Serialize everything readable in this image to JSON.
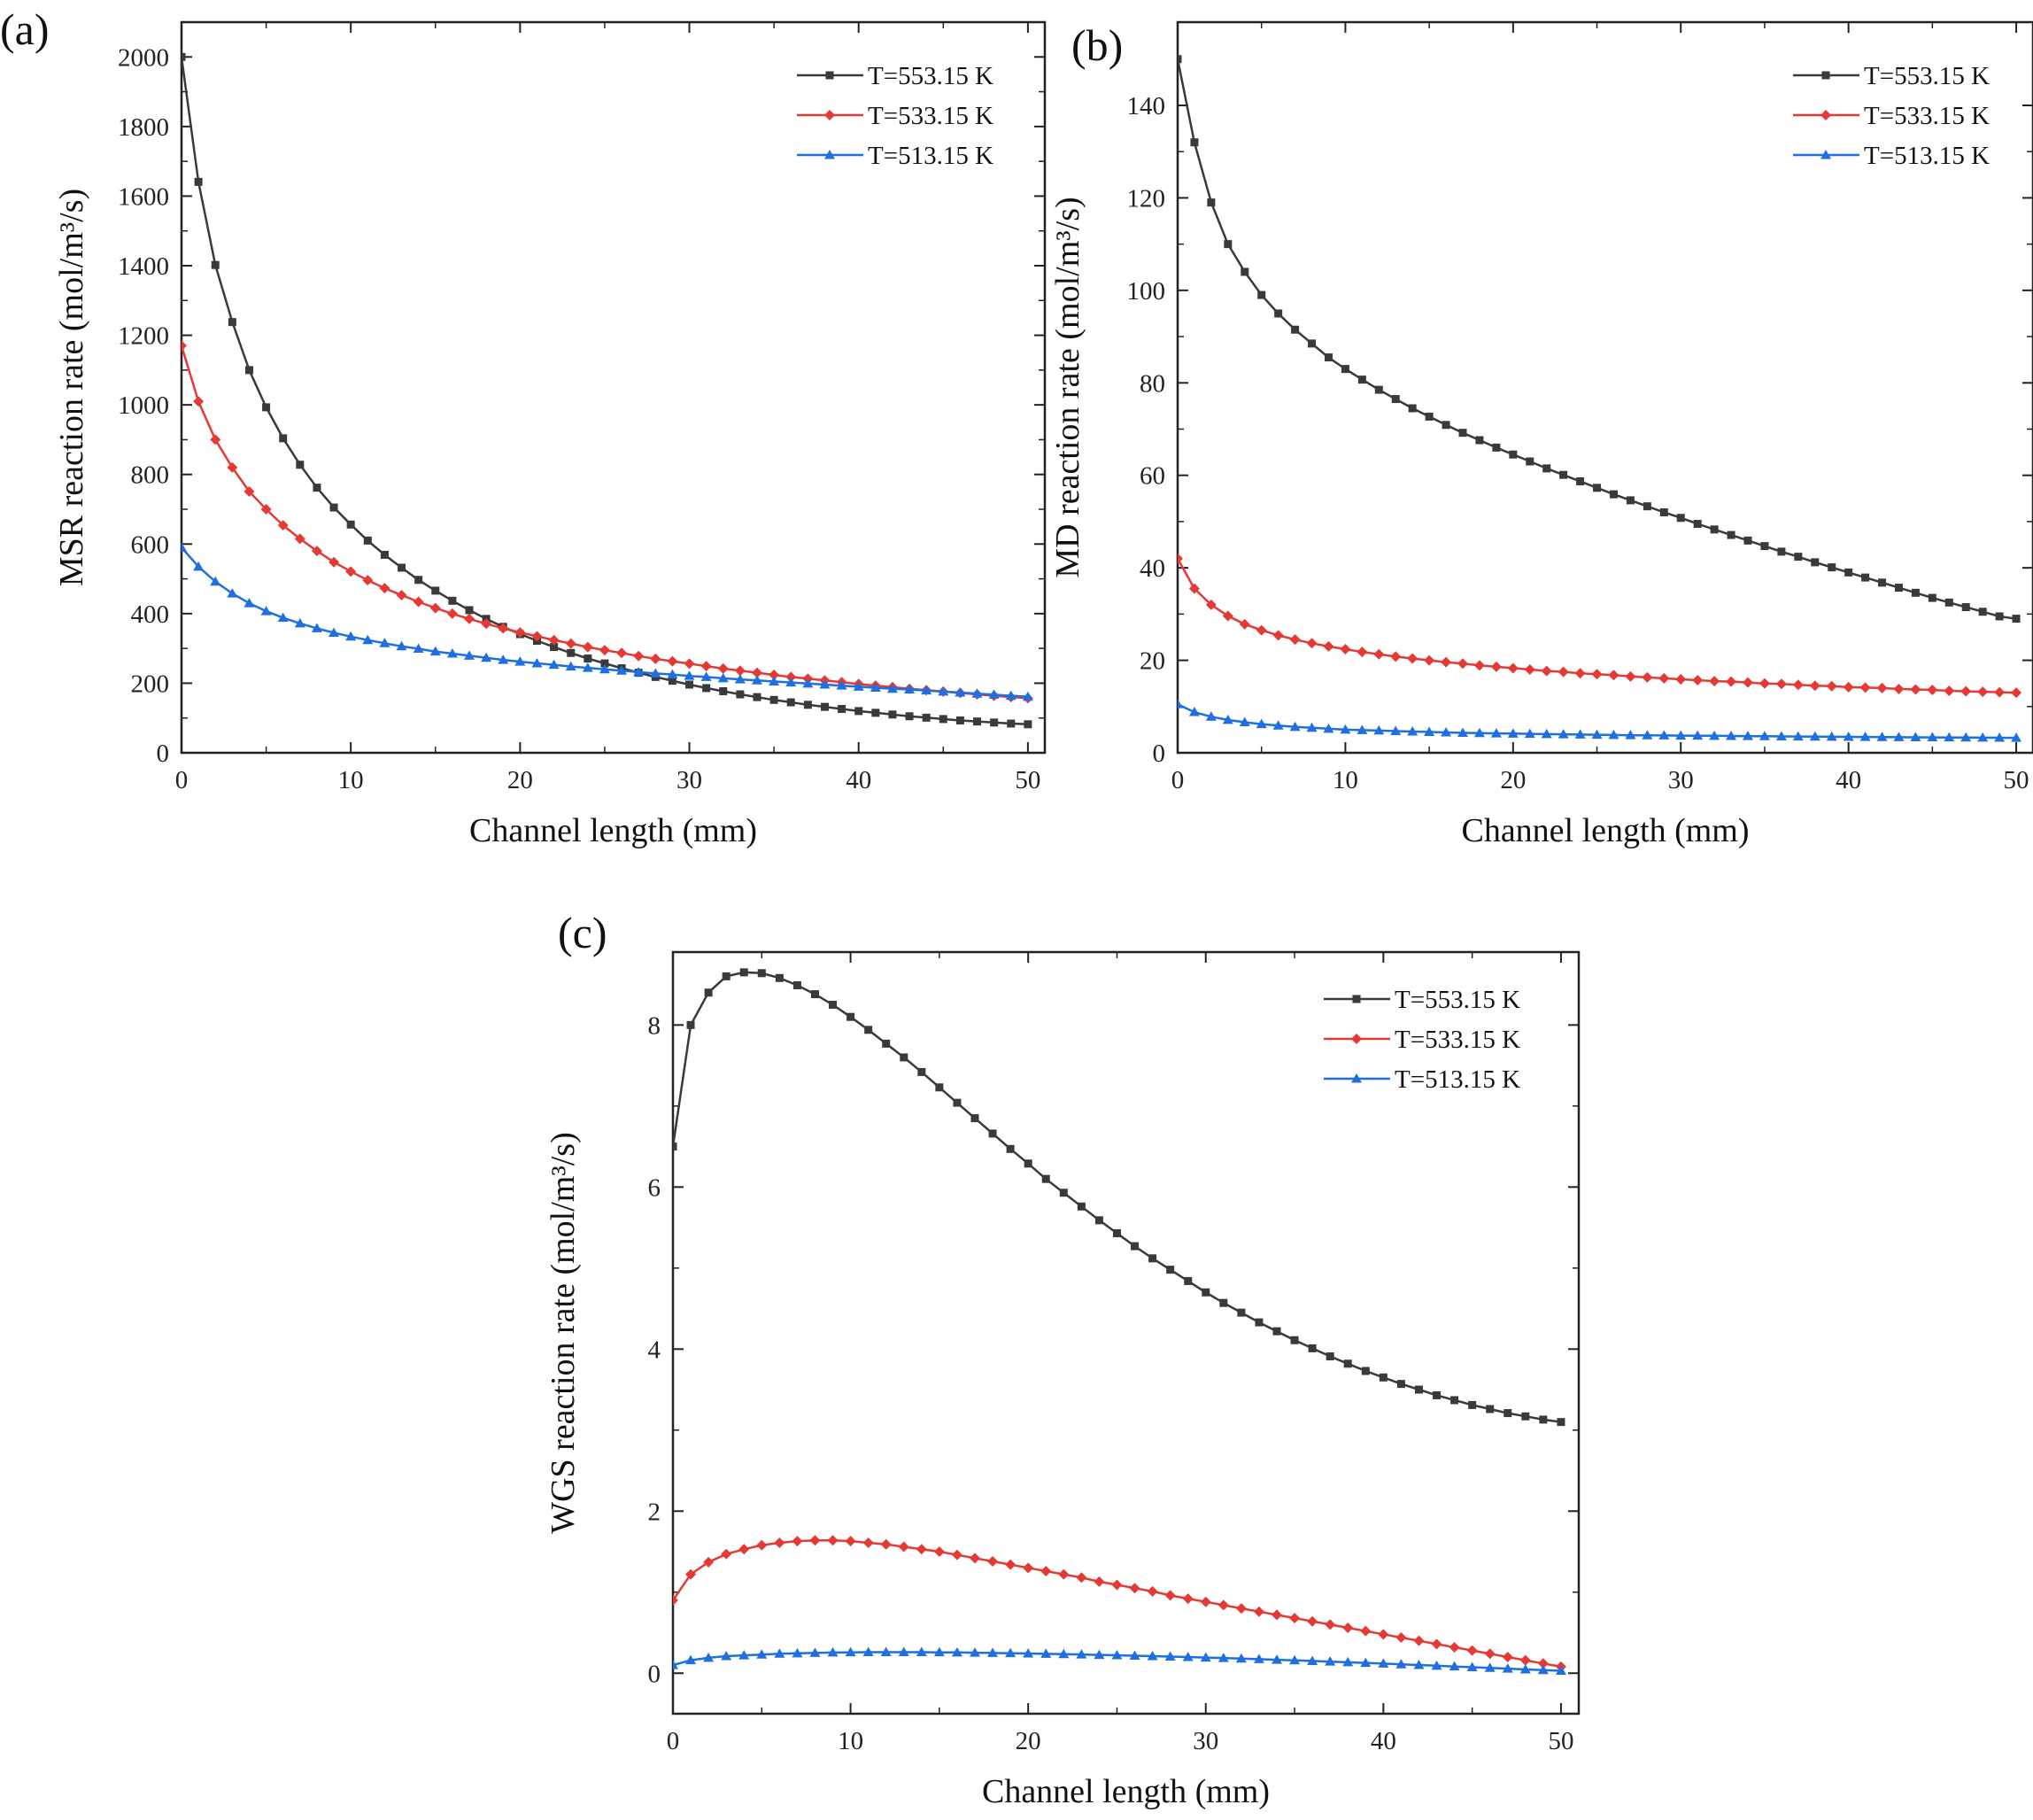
{
  "chart_data": [
    {
      "panel": "(a)",
      "type": "line",
      "xlabel": "Channel length (mm)",
      "ylabel": "MSR reaction rate (mol/m³/s)",
      "xlim": [
        0,
        51
      ],
      "ylim": [
        0,
        2100
      ],
      "xticks": [
        0,
        10,
        20,
        30,
        40,
        50
      ],
      "yticks": [
        0,
        200,
        400,
        600,
        800,
        1000,
        1200,
        1400,
        1600,
        1800,
        2000
      ],
      "grid": false,
      "legend_position": "top-right",
      "x": [
        0,
        1,
        2,
        3,
        4,
        5,
        6,
        7,
        8,
        9,
        10,
        11,
        12,
        13,
        14,
        15,
        16,
        17,
        18,
        19,
        20,
        21,
        22,
        23,
        24,
        25,
        26,
        27,
        28,
        29,
        30,
        31,
        32,
        33,
        34,
        35,
        36,
        37,
        38,
        39,
        40,
        41,
        42,
        43,
        44,
        45,
        46,
        47,
        48,
        49,
        50
      ],
      "series": [
        {
          "name": "T=553.15 K",
          "color": "#3a3a3a",
          "marker": "square",
          "values": [
            2000,
            1641,
            1402,
            1238,
            1100,
            993,
            904,
            828,
            762,
            705,
            656,
            610,
            569,
            532,
            497,
            466,
            437,
            410,
            385,
            362,
            341,
            322,
            304,
            287,
            271,
            257,
            243,
            230,
            218,
            207,
            196,
            186,
            177,
            168,
            160,
            152,
            145,
            138,
            132,
            126,
            120,
            115,
            110,
            105,
            101,
            97,
            93,
            90,
            87,
            84,
            82
          ]
        },
        {
          "name": "T=533.15 K",
          "color": "#e53935",
          "marker": "diamond",
          "values": [
            1170,
            1010,
            900,
            820,
            751,
            700,
            654,
            615,
            580,
            548,
            521,
            496,
            473,
            453,
            434,
            416,
            400,
            385,
            371,
            358,
            346,
            335,
            324,
            314,
            304,
            295,
            287,
            278,
            270,
            263,
            256,
            249,
            242,
            236,
            230,
            224,
            218,
            213,
            208,
            203,
            198,
            193,
            189,
            184,
            180,
            176,
            172,
            168,
            164,
            160,
            157
          ]
        },
        {
          "name": "T=513.15 K",
          "color": "#1e6fe0",
          "marker": "triangle",
          "values": [
            590,
            535,
            492,
            458,
            430,
            407,
            388,
            372,
            358,
            345,
            334,
            324,
            315,
            306,
            299,
            291,
            285,
            279,
            273,
            267,
            262,
            257,
            253,
            248,
            244,
            240,
            236,
            232,
            228,
            225,
            221,
            218,
            214,
            211,
            208,
            205,
            202,
            199,
            196,
            193,
            190,
            187,
            184,
            182,
            179,
            176,
            173,
            170,
            167,
            164,
            161
          ]
        }
      ]
    },
    {
      "panel": "(b)",
      "type": "line",
      "xlabel": "Channel length (mm)",
      "ylabel": "MD reaction rate (mol/m³/s)",
      "xlim": [
        0,
        51
      ],
      "ylim": [
        0,
        158
      ],
      "xticks": [
        0,
        10,
        20,
        30,
        40,
        50
      ],
      "yticks": [
        0,
        20,
        40,
        60,
        80,
        100,
        120,
        140
      ],
      "grid": false,
      "legend_position": "top-right",
      "x": [
        0,
        1,
        2,
        3,
        4,
        5,
        6,
        7,
        8,
        9,
        10,
        11,
        12,
        13,
        14,
        15,
        16,
        17,
        18,
        19,
        20,
        21,
        22,
        23,
        24,
        25,
        26,
        27,
        28,
        29,
        30,
        31,
        32,
        33,
        34,
        35,
        36,
        37,
        38,
        39,
        40,
        41,
        42,
        43,
        44,
        45,
        46,
        47,
        48,
        49,
        50
      ],
      "series": [
        {
          "name": "T=553.15 K",
          "color": "#3a3a3a",
          "marker": "square",
          "values": [
            150,
            132,
            119,
            110,
            104,
            99,
            95,
            91.5,
            88.5,
            85.5,
            83,
            80.7,
            78.5,
            76.5,
            74.5,
            72.7,
            70.9,
            69.2,
            67.6,
            66,
            64.5,
            63,
            61.5,
            60.1,
            58.7,
            57.3,
            55.9,
            54.6,
            53.3,
            52,
            50.8,
            49.5,
            48.3,
            47.1,
            45.9,
            44.7,
            43.5,
            42.4,
            41.2,
            40.1,
            39,
            37.9,
            36.8,
            35.7,
            34.6,
            33.5,
            32.5,
            31.5,
            30.5,
            29.5,
            29
          ]
        },
        {
          "name": "T=533.15 K",
          "color": "#e53935",
          "marker": "diamond",
          "values": [
            42,
            35.5,
            32,
            29.6,
            27.8,
            26.5,
            25.4,
            24.5,
            23.7,
            23,
            22.4,
            21.8,
            21.3,
            20.8,
            20.4,
            20,
            19.6,
            19.3,
            18.9,
            18.6,
            18.3,
            18,
            17.7,
            17.5,
            17.2,
            17,
            16.8,
            16.5,
            16.3,
            16.1,
            15.9,
            15.7,
            15.5,
            15.4,
            15.2,
            15,
            14.9,
            14.7,
            14.5,
            14.4,
            14.2,
            14.1,
            14,
            13.8,
            13.7,
            13.6,
            13.4,
            13.3,
            13.2,
            13.1,
            13
          ]
        },
        {
          "name": "T=513.15 K",
          "color": "#1e6fe0",
          "marker": "triangle",
          "values": [
            10.5,
            8.8,
            7.8,
            7.1,
            6.6,
            6.2,
            5.9,
            5.6,
            5.4,
            5.2,
            5,
            4.9,
            4.8,
            4.7,
            4.6,
            4.5,
            4.4,
            4.3,
            4.25,
            4.2,
            4.15,
            4.1,
            4.05,
            4,
            3.95,
            3.9,
            3.85,
            3.8,
            3.78,
            3.75,
            3.72,
            3.7,
            3.67,
            3.64,
            3.61,
            3.58,
            3.55,
            3.52,
            3.49,
            3.46,
            3.44,
            3.42,
            3.4,
            3.38,
            3.36,
            3.34,
            3.32,
            3.3,
            3.28,
            3.26,
            3.24
          ]
        }
      ]
    },
    {
      "panel": "(c)",
      "type": "line",
      "xlabel": "Channel length (mm)",
      "ylabel": "WGS reaction rate (mol/m³/s)",
      "xlim": [
        0,
        51
      ],
      "ylim": [
        -0.5,
        8.9
      ],
      "xticks": [
        0,
        10,
        20,
        30,
        40,
        50
      ],
      "yticks": [
        0,
        2,
        4,
        6,
        8
      ],
      "grid": false,
      "legend_position": "top-right",
      "x": [
        0,
        1,
        2,
        3,
        4,
        5,
        6,
        7,
        8,
        9,
        10,
        11,
        12,
        13,
        14,
        15,
        16,
        17,
        18,
        19,
        20,
        21,
        22,
        23,
        24,
        25,
        26,
        27,
        28,
        29,
        30,
        31,
        32,
        33,
        34,
        35,
        36,
        37,
        38,
        39,
        40,
        41,
        42,
        43,
        44,
        45,
        46,
        47,
        48,
        49,
        50
      ],
      "series": [
        {
          "name": "T=553.15 K",
          "color": "#3a3a3a",
          "marker": "square",
          "values": [
            6.5,
            8,
            8.4,
            8.6,
            8.65,
            8.64,
            8.58,
            8.49,
            8.38,
            8.25,
            8.1,
            7.94,
            7.77,
            7.6,
            7.42,
            7.23,
            7.04,
            6.85,
            6.66,
            6.47,
            6.29,
            6.1,
            5.93,
            5.76,
            5.59,
            5.43,
            5.27,
            5.12,
            4.98,
            4.84,
            4.7,
            4.57,
            4.45,
            4.33,
            4.22,
            4.11,
            4.01,
            3.91,
            3.82,
            3.73,
            3.65,
            3.57,
            3.5,
            3.43,
            3.37,
            3.31,
            3.26,
            3.21,
            3.17,
            3.13,
            3.1
          ]
        },
        {
          "name": "T=533.15 K",
          "color": "#e53935",
          "marker": "diamond",
          "values": [
            0.9,
            1.22,
            1.37,
            1.47,
            1.53,
            1.58,
            1.61,
            1.63,
            1.64,
            1.64,
            1.63,
            1.61,
            1.59,
            1.56,
            1.53,
            1.5,
            1.46,
            1.42,
            1.38,
            1.34,
            1.3,
            1.26,
            1.22,
            1.18,
            1.13,
            1.09,
            1.05,
            1.01,
            0.96,
            0.92,
            0.88,
            0.84,
            0.8,
            0.76,
            0.72,
            0.68,
            0.64,
            0.6,
            0.56,
            0.52,
            0.48,
            0.44,
            0.4,
            0.36,
            0.32,
            0.28,
            0.24,
            0.2,
            0.16,
            0.12,
            0.08
          ]
        },
        {
          "name": "T=513.15 K",
          "color": "#1e6fe0",
          "marker": "triangle",
          "values": [
            0.1,
            0.16,
            0.19,
            0.21,
            0.22,
            0.23,
            0.24,
            0.245,
            0.25,
            0.255,
            0.258,
            0.26,
            0.26,
            0.26,
            0.26,
            0.258,
            0.256,
            0.253,
            0.25,
            0.247,
            0.243,
            0.239,
            0.235,
            0.231,
            0.226,
            0.221,
            0.216,
            0.211,
            0.205,
            0.199,
            0.193,
            0.187,
            0.18,
            0.173,
            0.166,
            0.159,
            0.151,
            0.143,
            0.135,
            0.127,
            0.119,
            0.11,
            0.101,
            0.092,
            0.083,
            0.074,
            0.065,
            0.056,
            0.047,
            0.038,
            0.03
          ]
        }
      ]
    }
  ]
}
